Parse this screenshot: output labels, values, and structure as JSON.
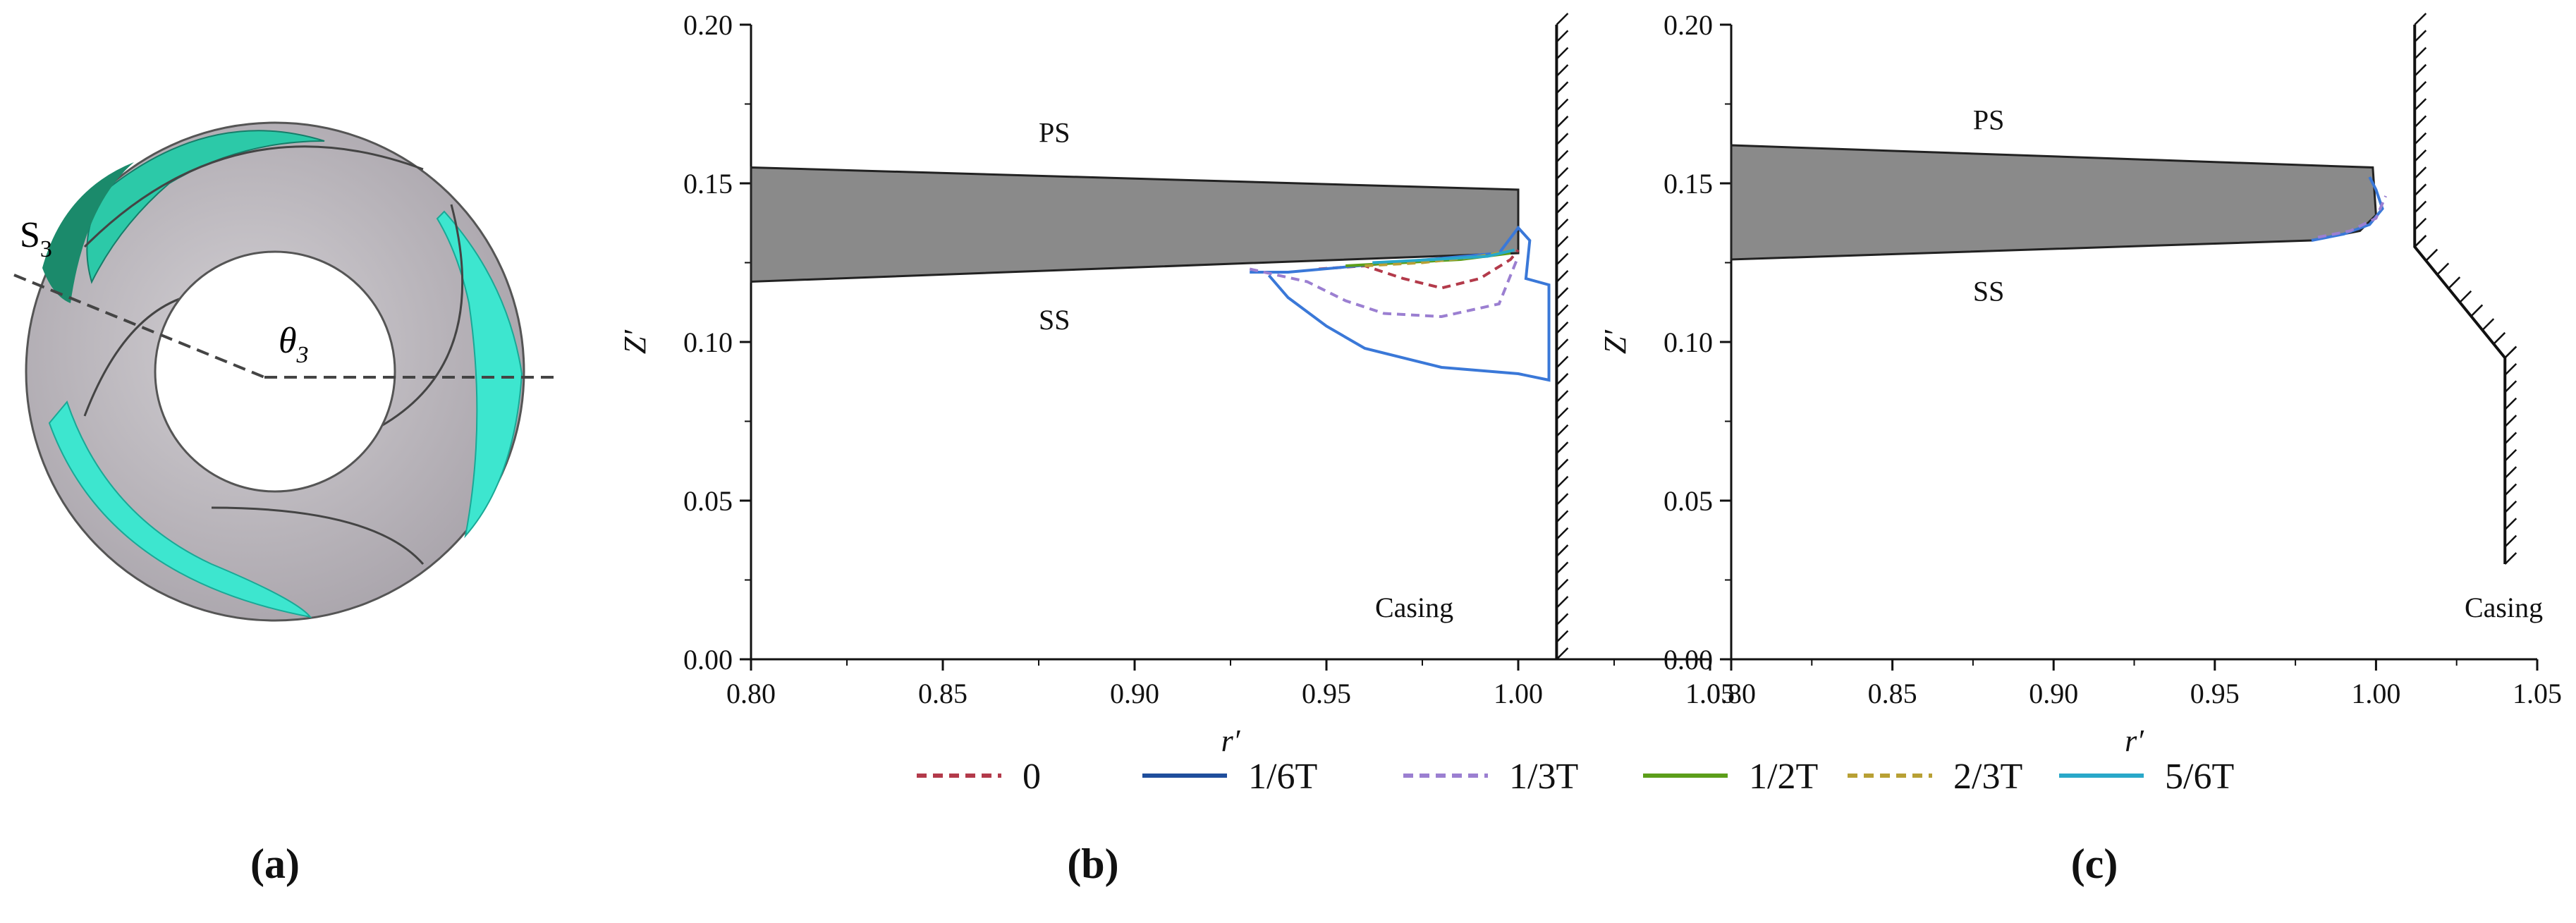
{
  "colors": {
    "blade": "#8a8a8a",
    "series_0": "#b33a4a",
    "series_1_6T": "#1f4e9c",
    "series_1_3T": "#9b7fd1",
    "series_1_2T": "#5c9e1a",
    "series_2_3T": "#b8a034",
    "series_5_6T": "#29a8c9",
    "blue_series": "#3a78d8",
    "cyan_region": "#3de6cf"
  },
  "panel_a": {
    "label": "(a)",
    "section_label": "S",
    "section_sub": "3",
    "angle_label": "θ",
    "angle_sub": "3"
  },
  "legend": [
    {
      "name": "0",
      "color": "#b33a4a",
      "dash": true
    },
    {
      "name": "1/6T",
      "color": "#1f4e9c",
      "dash": false
    },
    {
      "name": "1/3T",
      "color": "#9b7fd1",
      "dash": true
    },
    {
      "name": "1/2T",
      "color": "#5c9e1a",
      "dash": false
    },
    {
      "name": "2/3T",
      "color": "#b8a034",
      "dash": true
    },
    {
      "name": "5/6T",
      "color": "#29a8c9",
      "dash": false
    }
  ],
  "chart_data": [
    {
      "panel": "(b)",
      "type": "line",
      "xlabel": "r′",
      "ylabel": "Z′",
      "xlim": [
        0.8,
        1.05
      ],
      "ylim": [
        0.0,
        0.2
      ],
      "xticks": [
        "0.80",
        "0.85",
        "0.90",
        "0.95",
        "1.00",
        "1.05"
      ],
      "yticks": [
        "0.00",
        "0.05",
        "0.10",
        "0.15",
        "0.20"
      ],
      "annotations": {
        "ps": "PS",
        "ss": "SS",
        "casing": "Casing"
      },
      "blade": {
        "x": [
          0.8,
          1.0,
          1.0,
          0.8
        ],
        "y": [
          0.155,
          0.148,
          0.128,
          0.119
        ]
      },
      "casing_wall": {
        "x": [
          1.01,
          1.01
        ],
        "y": [
          0.0,
          0.2
        ]
      },
      "series": [
        {
          "name": "0",
          "x": [
            0.948,
            0.96,
            0.97,
            0.98,
            0.99,
            0.998,
            1.0
          ],
          "y": [
            0.123,
            0.124,
            0.12,
            0.117,
            0.12,
            0.126,
            0.129
          ]
        },
        {
          "name": "1/6T",
          "x": [
            0.935,
            0.94,
            0.95,
            0.96,
            0.98,
            1.0,
            1.008,
            1.008,
            1.002,
            1.003,
            1.0,
            0.995,
            0.94,
            0.93
          ],
          "y": [
            0.121,
            0.114,
            0.105,
            0.098,
            0.092,
            0.09,
            0.088,
            0.118,
            0.12,
            0.132,
            0.136,
            0.128,
            0.122,
            0.122
          ]
        },
        {
          "name": "1/3T",
          "x": [
            0.93,
            0.945,
            0.955,
            0.965,
            0.98,
            0.995,
            1.0
          ],
          "y": [
            0.123,
            0.119,
            0.113,
            0.109,
            0.108,
            0.112,
            0.127
          ]
        },
        {
          "name": "1/2T",
          "x": [
            0.955,
            0.97,
            0.985,
            0.998
          ],
          "y": [
            0.124,
            0.125,
            0.126,
            0.128
          ]
        },
        {
          "name": "2/3T",
          "x": [
            0.96,
            0.975,
            0.99,
            0.999
          ],
          "y": [
            0.124,
            0.125,
            0.127,
            0.129
          ]
        },
        {
          "name": "5/6T",
          "x": [
            0.962,
            0.978,
            0.992,
            0.999
          ],
          "y": [
            0.125,
            0.126,
            0.127,
            0.129
          ]
        }
      ]
    },
    {
      "panel": "(c)",
      "type": "line",
      "xlabel": "r′",
      "ylabel": "Z′",
      "xlim": [
        0.8,
        1.05
      ],
      "ylim": [
        0.0,
        0.2
      ],
      "xticks": [
        "0.80",
        "0.85",
        "0.90",
        "0.95",
        "1.00",
        "1.05"
      ],
      "yticks": [
        "0.00",
        "0.05",
        "0.10",
        "0.15",
        "0.20"
      ],
      "annotations": {
        "ps": "PS",
        "ss": "SS",
        "casing": "Casing"
      },
      "blade": {
        "x": [
          0.8,
          0.999,
          1.0,
          0.995,
          0.98,
          0.8
        ],
        "y": [
          0.162,
          0.155,
          0.14,
          0.135,
          0.132,
          0.126
        ]
      },
      "casing_wall": {
        "x": [
          1.012,
          1.012,
          1.04,
          1.04
        ],
        "y": [
          0.2,
          0.13,
          0.095,
          0.03
        ]
      },
      "series": [
        {
          "name": "1/6T",
          "x": [
            0.98,
            0.99,
            0.998,
            1.002,
            1.0,
            0.998
          ],
          "y": [
            0.132,
            0.134,
            0.137,
            0.142,
            0.148,
            0.152
          ]
        },
        {
          "name": "1/3T",
          "x": [
            0.982,
            0.992,
            1.0,
            1.003
          ],
          "y": [
            0.133,
            0.135,
            0.139,
            0.146
          ]
        }
      ]
    }
  ]
}
